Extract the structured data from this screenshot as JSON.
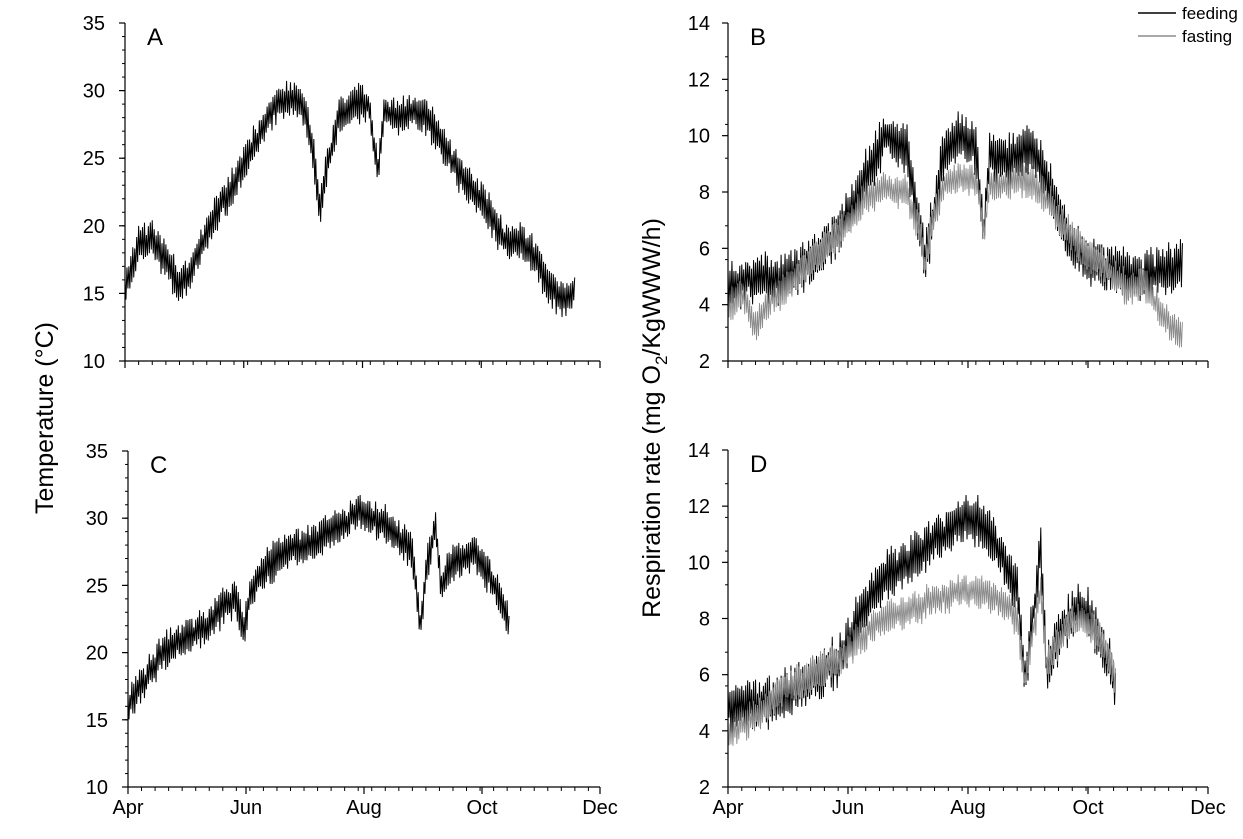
{
  "figure": {
    "ylabel_left": "Temperature (°C)",
    "ylabel_right_parts": [
      "Respiration rate (mg O",
      "2",
      "/KgWWW/h)"
    ]
  },
  "legend": {
    "feeding": "feeding",
    "fasting": "fasting"
  },
  "colors": {
    "feeding": "#000000",
    "fasting": "#8c8c8c",
    "axis": "#000000"
  },
  "chart_data": [
    {
      "id": "A",
      "type": "line",
      "panel_label": "A",
      "xlabel": "",
      "ylabel": "Temperature (°C)",
      "x_ticks": [
        "Apr",
        "Jun",
        "Aug",
        "Oct",
        "Dec"
      ],
      "y_ticks": [
        "10",
        "15",
        "20",
        "25",
        "30",
        "35"
      ],
      "xlim": [
        "Apr",
        "Dec"
      ],
      "ylim": [
        10,
        35
      ],
      "series": [
        {
          "key": "temperature",
          "points": [
            [
              "Apr 1",
              15.5
            ],
            [
              "Apr 8",
              18.5
            ],
            [
              "Apr 15",
              19.0
            ],
            [
              "Apr 22",
              17.5
            ],
            [
              "Apr 29",
              15.5
            ],
            [
              "May 6",
              17.0
            ],
            [
              "May 13",
              19.5
            ],
            [
              "May 20",
              21.5
            ],
            [
              "May 27",
              23.0
            ],
            [
              "Jun 3",
              25.0
            ],
            [
              "Jun 10",
              27.0
            ],
            [
              "Jun 17",
              29.0
            ],
            [
              "Jun 24",
              29.5
            ],
            [
              "Jul 1",
              29.0
            ],
            [
              "Jul 5",
              27.0
            ],
            [
              "Jul 8",
              24.0
            ],
            [
              "Jul 10",
              21.0
            ],
            [
              "Jul 14",
              24.5
            ],
            [
              "Jul 20",
              28.0
            ],
            [
              "Jul 28",
              29.0
            ],
            [
              "Aug 4",
              29.0
            ],
            [
              "Aug 9",
              24.0
            ],
            [
              "Aug 12",
              28.5
            ],
            [
              "Aug 20",
              28.0
            ],
            [
              "Aug 27",
              28.5
            ],
            [
              "Sep 3",
              28.0
            ],
            [
              "Sep 10",
              26.5
            ],
            [
              "Sep 17",
              24.5
            ],
            [
              "Sep 24",
              23.0
            ],
            [
              "Oct 1",
              22.0
            ],
            [
              "Oct 8",
              20.0
            ],
            [
              "Oct 15",
              18.5
            ],
            [
              "Oct 22",
              19.0
            ],
            [
              "Oct 29",
              17.5
            ],
            [
              "Nov 5",
              15.5
            ],
            [
              "Nov 12",
              14.5
            ],
            [
              "Nov 18",
              15.0
            ]
          ]
        }
      ]
    },
    {
      "id": "B",
      "type": "line",
      "panel_label": "B",
      "xlabel": "",
      "ylabel": "Respiration rate (mg O2/KgWWW/h)",
      "x_ticks": [
        "Apr",
        "Jun",
        "Aug",
        "Oct",
        "Dec"
      ],
      "y_ticks": [
        "2",
        "4",
        "6",
        "8",
        "10",
        "12",
        "14"
      ],
      "xlim": [
        "Apr",
        "Dec"
      ],
      "ylim": [
        2,
        14
      ],
      "series": [
        {
          "name": "feeding",
          "key": "feeding",
          "points": [
            [
              "Apr 1",
              4.6
            ],
            [
              "Apr 15",
              5.0
            ],
            [
              "Apr 29",
              4.9
            ],
            [
              "May 13",
              5.5
            ],
            [
              "May 27",
              6.5
            ],
            [
              "Jun 10",
              8.5
            ],
            [
              "Jun 20",
              10.0
            ],
            [
              "Jul 1",
              9.5
            ],
            [
              "Jul 8",
              6.5
            ],
            [
              "Jul 10",
              5.5
            ],
            [
              "Jul 14",
              7.0
            ],
            [
              "Jul 20",
              9.5
            ],
            [
              "Jul 28",
              10.0
            ],
            [
              "Aug 5",
              9.5
            ],
            [
              "Aug 9",
              6.5
            ],
            [
              "Aug 12",
              9.5
            ],
            [
              "Aug 20",
              9.0
            ],
            [
              "Aug 27",
              9.5
            ],
            [
              "Sep 3",
              9.5
            ],
            [
              "Sep 10",
              8.5
            ],
            [
              "Sep 17",
              7.0
            ],
            [
              "Sep 24",
              6.0
            ],
            [
              "Oct 1",
              5.5
            ],
            [
              "Oct 15",
              5.2
            ],
            [
              "Oct 29",
              5.0
            ],
            [
              "Nov 10",
              5.2
            ],
            [
              "Nov 18",
              5.4
            ]
          ]
        },
        {
          "name": "fasting",
          "key": "fasting",
          "points": [
            [
              "Apr 1",
              3.8
            ],
            [
              "Apr 8",
              4.5
            ],
            [
              "Apr 15",
              3.2
            ],
            [
              "Apr 22",
              4.2
            ],
            [
              "Apr 29",
              4.5
            ],
            [
              "May 6",
              5.0
            ],
            [
              "May 13",
              5.5
            ],
            [
              "May 20",
              6.0
            ],
            [
              "May 27",
              6.5
            ],
            [
              "Jun 3",
              7.0
            ],
            [
              "Jun 10",
              7.8
            ],
            [
              "Jun 20",
              8.2
            ],
            [
              "Jul 1",
              8.0
            ],
            [
              "Jul 8",
              6.5
            ],
            [
              "Jul 10",
              5.2
            ],
            [
              "Jul 14",
              7.0
            ],
            [
              "Jul 20",
              8.3
            ],
            [
              "Jul 28",
              8.5
            ],
            [
              "Aug 5",
              8.5
            ],
            [
              "Aug 9",
              6.5
            ],
            [
              "Aug 12",
              8.3
            ],
            [
              "Aug 20",
              8.3
            ],
            [
              "Aug 27",
              8.5
            ],
            [
              "Sep 3",
              8.3
            ],
            [
              "Sep 10",
              7.8
            ],
            [
              "Sep 17",
              7.0
            ],
            [
              "Sep 24",
              6.3
            ],
            [
              "Oct 1",
              5.8
            ],
            [
              "Oct 8",
              5.5
            ],
            [
              "Oct 15",
              5.0
            ],
            [
              "Oct 22",
              4.5
            ],
            [
              "Oct 29",
              4.8
            ],
            [
              "Nov 5",
              4.0
            ],
            [
              "Nov 12",
              3.2
            ],
            [
              "Nov 18",
              3.0
            ]
          ]
        }
      ]
    },
    {
      "id": "C",
      "type": "line",
      "panel_label": "C",
      "xlabel": "",
      "ylabel": "Temperature (°C)",
      "x_ticks": [
        "Apr",
        "Jun",
        "Aug",
        "Oct",
        "Dec"
      ],
      "y_ticks": [
        "10",
        "15",
        "20",
        "25",
        "30",
        "35"
      ],
      "xlim": [
        "Apr",
        "Dec"
      ],
      "ylim": [
        10,
        35
      ],
      "series": [
        {
          "key": "temperature",
          "points": [
            [
              "Apr 1",
              16.0
            ],
            [
              "Apr 8",
              17.5
            ],
            [
              "Apr 15",
              19.0
            ],
            [
              "Apr 22",
              20.5
            ],
            [
              "Apr 29",
              21.0
            ],
            [
              "May 6",
              21.5
            ],
            [
              "May 13",
              22.0
            ],
            [
              "May 20",
              23.5
            ],
            [
              "May 27",
              24.0
            ],
            [
              "May 31",
              21.5
            ],
            [
              "Jun 3",
              24.5
            ],
            [
              "Jun 10",
              26.0
            ],
            [
              "Jun 17",
              27.0
            ],
            [
              "Jun 24",
              27.5
            ],
            [
              "Jul 1",
              28.0
            ],
            [
              "Jul 8",
              28.5
            ],
            [
              "Jul 15",
              29.0
            ],
            [
              "Jul 22",
              29.5
            ],
            [
              "Jul 29",
              30.5
            ],
            [
              "Aug 5",
              30.0
            ],
            [
              "Aug 12",
              29.5
            ],
            [
              "Aug 19",
              28.5
            ],
            [
              "Aug 26",
              27.5
            ],
            [
              "Aug 30",
              22.0
            ],
            [
              "Sep 3",
              27.0
            ],
            [
              "Sep 7",
              29.5
            ],
            [
              "Sep 10",
              24.5
            ],
            [
              "Sep 14",
              26.5
            ],
            [
              "Sep 21",
              27.0
            ],
            [
              "Sep 28",
              27.5
            ],
            [
              "Oct 5",
              25.5
            ],
            [
              "Oct 12",
              23.5
            ],
            [
              "Oct 15",
              22.0
            ]
          ]
        }
      ]
    },
    {
      "id": "D",
      "type": "line",
      "panel_label": "D",
      "xlabel": "",
      "ylabel": "Respiration rate (mg O2/KgWWW/h)",
      "x_ticks": [
        "Apr",
        "Jun",
        "Aug",
        "Oct",
        "Dec"
      ],
      "y_ticks": [
        "2",
        "4",
        "6",
        "8",
        "10",
        "12",
        "14"
      ],
      "xlim": [
        "Apr",
        "Dec"
      ],
      "ylim": [
        2,
        14
      ],
      "series": [
        {
          "name": "feeding",
          "key": "feeding",
          "points": [
            [
              "Apr 1",
              4.8
            ],
            [
              "Apr 15",
              4.9
            ],
            [
              "Apr 29",
              5.2
            ],
            [
              "May 13",
              5.8
            ],
            [
              "May 27",
              6.5
            ],
            [
              "Jun 10",
              8.5
            ],
            [
              "Jun 20",
              9.5
            ],
            [
              "Jul 1",
              10.0
            ],
            [
              "Jul 10",
              10.5
            ],
            [
              "Jul 20",
              11.0
            ],
            [
              "Jul 28",
              11.5
            ],
            [
              "Aug 5",
              11.5
            ],
            [
              "Aug 12",
              11.0
            ],
            [
              "Aug 20",
              10.0
            ],
            [
              "Aug 26",
              9.0
            ],
            [
              "Aug 30",
              5.8
            ],
            [
              "Sep 3",
              8.0
            ],
            [
              "Sep 7",
              10.5
            ],
            [
              "Sep 10",
              6.0
            ],
            [
              "Sep 14",
              7.0
            ],
            [
              "Sep 21",
              8.0
            ],
            [
              "Sep 28",
              8.5
            ],
            [
              "Oct 5",
              7.5
            ],
            [
              "Oct 12",
              6.5
            ],
            [
              "Oct 15",
              5.5
            ]
          ]
        },
        {
          "name": "fasting",
          "key": "fasting",
          "points": [
            [
              "Apr 1",
              3.8
            ],
            [
              "Apr 8",
              4.2
            ],
            [
              "Apr 15",
              4.5
            ],
            [
              "Apr 22",
              5.0
            ],
            [
              "Apr 29",
              5.5
            ],
            [
              "May 6",
              5.7
            ],
            [
              "May 13",
              6.0
            ],
            [
              "May 20",
              6.3
            ],
            [
              "May 27",
              6.5
            ],
            [
              "Jun 3",
              7.0
            ],
            [
              "Jun 10",
              7.5
            ],
            [
              "Jun 20",
              8.0
            ],
            [
              "Jul 1",
              8.3
            ],
            [
              "Jul 10",
              8.5
            ],
            [
              "Jul 20",
              8.8
            ],
            [
              "Jul 28",
              9.0
            ],
            [
              "Aug 5",
              9.0
            ],
            [
              "Aug 12",
              8.8
            ],
            [
              "Aug 20",
              8.5
            ],
            [
              "Aug 26",
              8.0
            ],
            [
              "Aug 30",
              5.8
            ],
            [
              "Sep 3",
              7.5
            ],
            [
              "Sep 7",
              9.0
            ],
            [
              "Sep 10",
              6.2
            ],
            [
              "Sep 14",
              7.0
            ],
            [
              "Sep 21",
              7.8
            ],
            [
              "Sep 28",
              8.0
            ],
            [
              "Oct 5",
              7.5
            ],
            [
              "Oct 12",
              6.5
            ],
            [
              "Oct 15",
              5.8
            ]
          ]
        }
      ]
    }
  ]
}
